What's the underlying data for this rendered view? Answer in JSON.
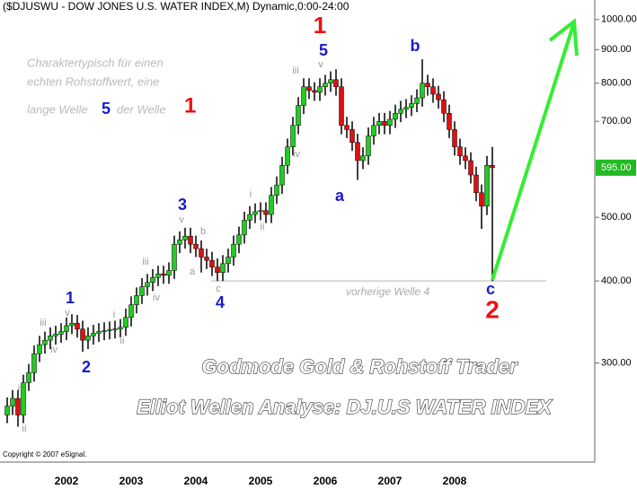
{
  "chart_data": {
    "type": "candlestick",
    "title": "($DJUSWU - DOW JONES U.S. WATER INDEX,M) Dynamic,0:00-24:00",
    "categories": [
      null,
      null,
      null,
      null,
      null,
      null,
      null,
      null,
      null,
      null,
      null,
      "2002",
      null,
      null,
      null,
      null,
      null,
      null,
      null,
      null,
      null,
      null,
      null,
      "2003",
      null,
      null,
      null,
      null,
      null,
      null,
      null,
      null,
      null,
      null,
      null,
      "2004",
      null,
      null,
      null,
      null,
      null,
      null,
      null,
      null,
      null,
      null,
      null,
      "2005",
      null,
      null,
      null,
      null,
      null,
      null,
      null,
      null,
      null,
      null,
      null,
      "2006",
      null,
      null,
      null,
      null,
      null,
      null,
      null,
      null,
      null,
      null,
      null,
      "2007",
      null,
      null,
      null,
      null,
      null,
      null,
      null,
      null,
      null,
      null,
      null,
      "2008",
      null,
      null,
      null,
      null,
      null,
      null,
      null
    ],
    "open": [
      250,
      258,
      265,
      250,
      280,
      290,
      310,
      320,
      325,
      330,
      332,
      335,
      342,
      345,
      338,
      325,
      330,
      333,
      335,
      336,
      337,
      338,
      340,
      352,
      368,
      380,
      392,
      398,
      405,
      410,
      408,
      415,
      455,
      462,
      468,
      455,
      448,
      435,
      430,
      420,
      412,
      425,
      435,
      455,
      470,
      495,
      505,
      510,
      512,
      505,
      540,
      560,
      600,
      640,
      690,
      740,
      790,
      780,
      775,
      790,
      800,
      810,
      790,
      690,
      680,
      650,
      610,
      620,
      665,
      690,
      700,
      690,
      705,
      720,
      730,
      735,
      745,
      760,
      800,
      790,
      770,
      755,
      720,
      680,
      640,
      620,
      610,
      580,
      545,
      520,
      600
    ],
    "high": [
      266,
      273,
      273,
      288,
      299,
      319,
      330,
      335,
      340,
      342,
      345,
      352,
      356,
      355,
      348,
      340,
      343,
      345,
      346,
      347,
      348,
      350,
      363,
      379,
      391,
      404,
      410,
      417,
      422,
      422,
      427,
      469,
      476,
      482,
      482,
      469,
      461,
      448,
      443,
      433,
      438,
      448,
      469,
      484,
      510,
      520,
      525,
      527,
      527,
      556,
      577,
      618,
      659,
      711,
      762,
      814,
      814,
      803,
      814,
      824,
      834,
      840,
      814,
      711,
      700,
      670,
      639,
      685,
      711,
      721,
      721,
      726,
      742,
      752,
      757,
      767,
      783,
      870,
      824,
      814,
      793,
      778,
      742,
      700,
      659,
      639,
      628,
      597,
      561,
      620,
      640
    ],
    "low": [
      243,
      250,
      240,
      243,
      272,
      281,
      301,
      310,
      315,
      320,
      322,
      325,
      332,
      328,
      312,
      315,
      320,
      323,
      325,
      326,
      327,
      328,
      330,
      341,
      357,
      369,
      380,
      386,
      393,
      396,
      396,
      403,
      441,
      448,
      441,
      435,
      412,
      417,
      407,
      400,
      400,
      412,
      422,
      441,
      456,
      480,
      490,
      495,
      490,
      490,
      524,
      543,
      582,
      621,
      669,
      718,
      757,
      752,
      752,
      766,
      776,
      766,
      669,
      660,
      631,
      570,
      592,
      601,
      645,
      669,
      669,
      669,
      684,
      698,
      708,
      713,
      723,
      737,
      766,
      747,
      732,
      698,
      660,
      621,
      601,
      592,
      563,
      529,
      480,
      504,
      400
    ],
    "close": [
      258,
      265,
      250,
      280,
      290,
      310,
      320,
      325,
      330,
      332,
      335,
      342,
      345,
      338,
      325,
      330,
      333,
      335,
      336,
      337,
      338,
      340,
      352,
      368,
      380,
      392,
      398,
      405,
      410,
      408,
      415,
      455,
      462,
      468,
      455,
      448,
      435,
      430,
      420,
      412,
      425,
      435,
      455,
      470,
      495,
      505,
      510,
      512,
      505,
      540,
      560,
      600,
      640,
      690,
      740,
      790,
      780,
      775,
      790,
      800,
      810,
      790,
      690,
      680,
      650,
      610,
      620,
      665,
      690,
      700,
      690,
      705,
      720,
      730,
      735,
      745,
      760,
      800,
      790,
      770,
      755,
      720,
      680,
      640,
      620,
      610,
      580,
      545,
      520,
      600,
      595
    ],
    "up_color": "#22cc22",
    "down_color": "#dd1111",
    "log_scale": true,
    "ylim": [
      212,
      1071
    ],
    "yticks": [
      {
        "value": 1000,
        "label": "1000.00"
      },
      {
        "value": 900,
        "label": "900.00"
      },
      {
        "value": 800,
        "label": "800.00"
      },
      {
        "value": 700,
        "label": "700.00"
      },
      {
        "value": 500,
        "label": "500.00"
      },
      {
        "value": 400,
        "label": "400.00"
      },
      {
        "value": 300,
        "label": "300.00"
      }
    ],
    "last_price": {
      "value": 595,
      "label": "595.00"
    },
    "hline": 400,
    "annotations": [
      {
        "text": "ii",
        "color": "#999999"
      },
      {
        "text": "i",
        "color": "#999999"
      },
      {
        "text": "iii",
        "color": "#999999"
      },
      {
        "text": "iv",
        "color": "#999999"
      },
      {
        "text": "v",
        "color": "#999999"
      },
      {
        "text": "1",
        "color": "#1a1acc"
      },
      {
        "text": "2",
        "color": "#1a1acc"
      },
      {
        "text": "i",
        "color": "#999999"
      },
      {
        "text": "ii",
        "color": "#999999"
      },
      {
        "text": "iii",
        "color": "#999999"
      },
      {
        "text": "iv",
        "color": "#999999"
      },
      {
        "text": "v",
        "color": "#999999"
      },
      {
        "text": "3",
        "color": "#1a1acc"
      },
      {
        "text": "b",
        "color": "#999999"
      },
      {
        "text": "a",
        "color": "#999999"
      },
      {
        "text": "c",
        "color": "#999999"
      },
      {
        "text": "4",
        "color": "#1a1acc"
      },
      {
        "text": "i",
        "color": "#999999"
      },
      {
        "text": "ii",
        "color": "#999999"
      },
      {
        "text": "iii",
        "color": "#999999"
      },
      {
        "text": "iv",
        "color": "#999999"
      },
      {
        "text": "v",
        "color": "#999999"
      },
      {
        "text": "5",
        "color": "#1a1acc"
      },
      {
        "text": "1",
        "color": "#ee1111"
      },
      {
        "text": "a",
        "color": "#1a1acc"
      },
      {
        "text": "b",
        "color": "#1a1acc"
      },
      {
        "text": "c",
        "color": "#1a1acc"
      },
      {
        "text": "2",
        "color": "#ee1111"
      },
      {
        "text": "vorherige Welle 4",
        "color": "#aaaaaa"
      }
    ],
    "comment": [
      "Charaktertypisch für einen",
      "echten Rohstoffwert, eine",
      "lange Welle",
      "5",
      "der Welle",
      "1"
    ],
    "watermark": [
      "Godmode Gold & Rohstoff Trader",
      "Elliot Wellen Analyse: DJ.U.S WATER INDEX"
    ],
    "copyright": "Copyright © 2007 eSignal."
  }
}
